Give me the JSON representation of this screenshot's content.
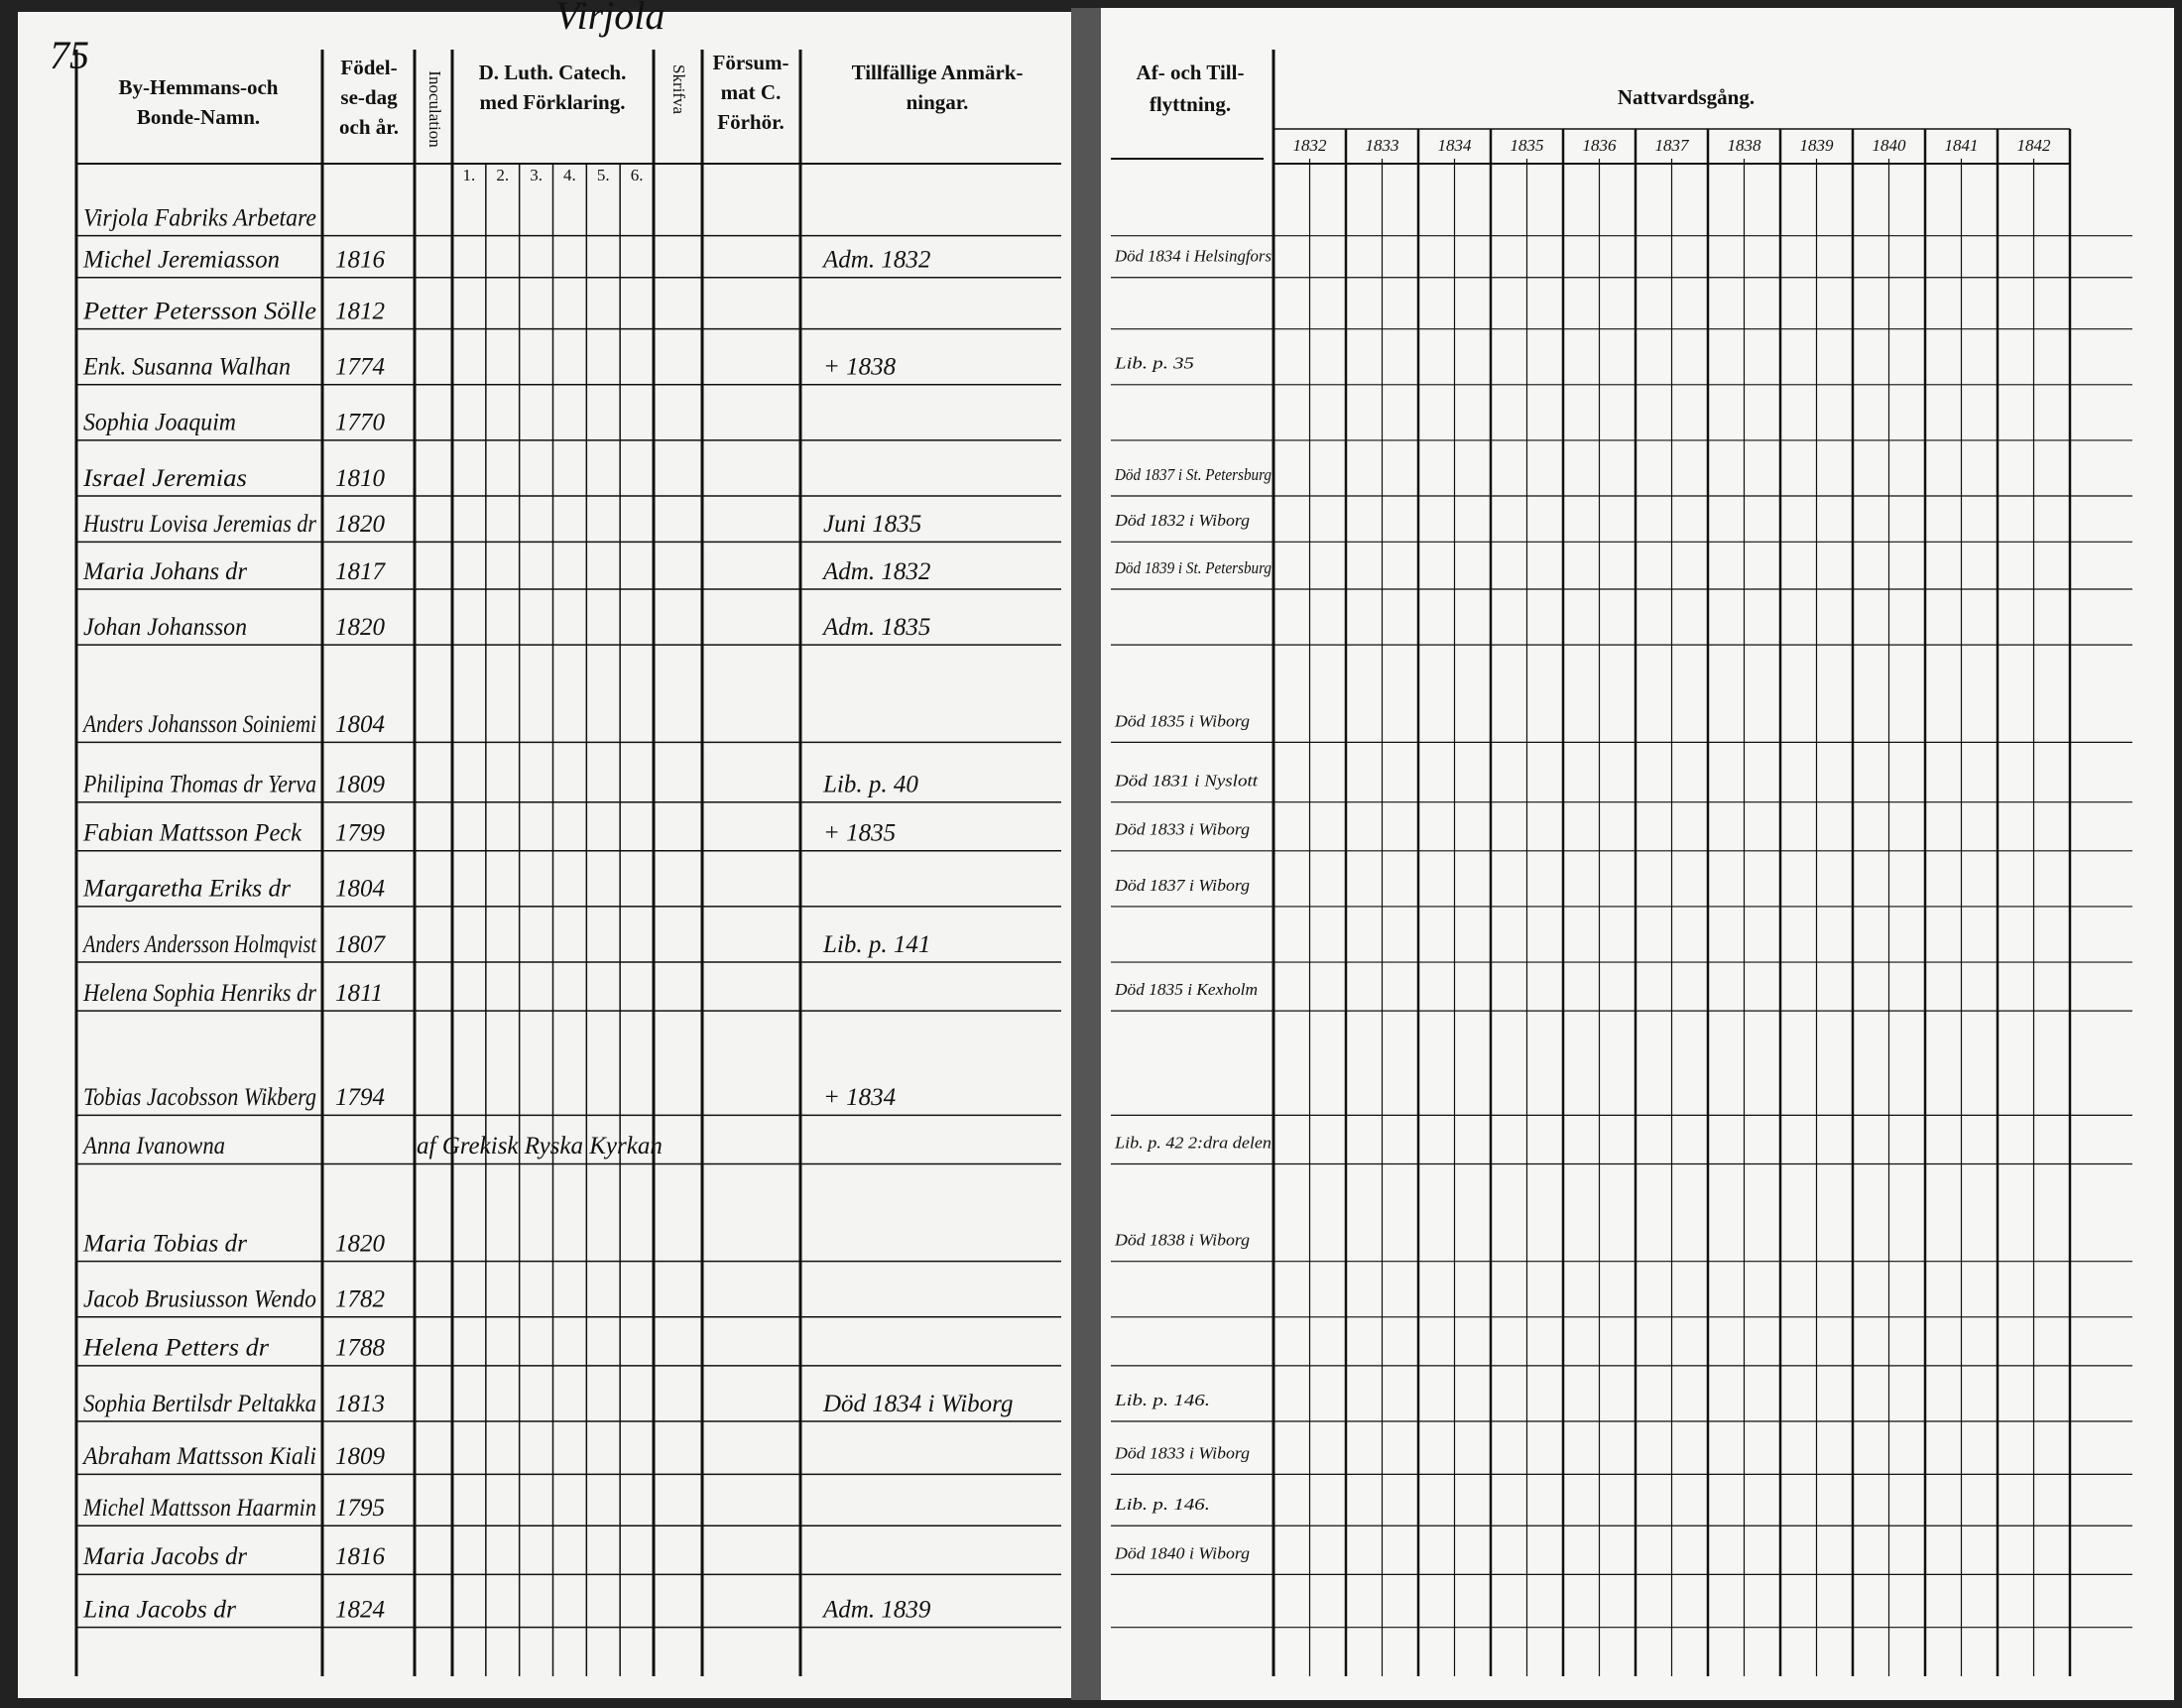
{
  "page_number": "75",
  "village": "Virjola",
  "left_page": {
    "headers": {
      "name": [
        "By-Hemmans-och",
        "Bonde-Namn."
      ],
      "birth": [
        "Födel-",
        "se-dag",
        "och år."
      ],
      "inoculation": "Inoculation",
      "catechism": [
        "D. Luth. Catech.",
        "med Förklaring."
      ],
      "writing": "Skrifva",
      "missed": [
        "Försum-",
        "mat C.",
        "Förhör."
      ],
      "remarks": [
        "Tillfällige Anmärk-",
        "ningar."
      ]
    },
    "catechism_parts": [
      "1.",
      "2.",
      "3.",
      "4.",
      "5.",
      "6."
    ],
    "rows": [
      {
        "name": "Virjola Fabriks Arbetare"
      },
      {
        "name": "Michel Jeremiasson",
        "birth": "1816",
        "remark": "Adm. 1832",
        "move": "Död 1834 i Helsingfors"
      },
      {
        "name": "Petter Petersson Sölle",
        "birth": "1812"
      },
      {
        "name": "Enk. Susanna Walhan",
        "birth": "1774",
        "remark": "+ 1838",
        "move": "Lib. p. 35"
      },
      {
        "name": "Sophia Joaquim",
        "birth": "1770"
      },
      {
        "name": "Israel Jeremias",
        "birth": "1810",
        "move": "Död 1837 i St. Petersburg"
      },
      {
        "name": "Hustru Lovisa Jeremias dr",
        "birth": "1820",
        "remark": "Juni 1835",
        "move": "Död 1832 i Wiborg"
      },
      {
        "name": "Maria Johans dr",
        "birth": "1817",
        "remark": "Adm. 1832",
        "move": "Död 1839 i St. Petersburg"
      },
      {
        "name": "Johan Johansson",
        "birth": "1820",
        "remark": "Adm. 1835"
      },
      {
        "name": "Anders Johansson Soiniemi",
        "birth": "1804",
        "move": "Död 1835 i Wiborg"
      },
      {
        "name": "Philipina Thomas dr Yerva",
        "birth": "1809",
        "remark": "Lib. p. 40",
        "move": "Död 1831 i Nyslott"
      },
      {
        "name": "Fabian Mattsson Peck",
        "birth": "1799",
        "remark": "+ 1835",
        "move": "Död 1833 i Wiborg"
      },
      {
        "name": "Margaretha Eriks dr",
        "birth": "1804",
        "move": "Död 1837 i Wiborg"
      },
      {
        "name": "Anders Andersson Holmqvist",
        "birth": "1807",
        "remark": "Lib. p. 141"
      },
      {
        "name": "Helena Sophia Henriks dr",
        "birth": "1811",
        "move": "Död 1835 i Kexholm"
      },
      {
        "name": "Tobias Jacobsson Wikberg",
        "birth": "1794",
        "remark": "+ 1834"
      },
      {
        "name": "Anna Ivanowna",
        "note": "af Grekisk Ryska Kyrkan",
        "move": "Lib. p. 42 2:dra delen"
      },
      {
        "name": "Maria Tobias dr",
        "birth": "1820",
        "move": "Död 1838 i Wiborg"
      },
      {
        "name": "Jacob Brusiusson Wendo",
        "birth": "1782"
      },
      {
        "name": "Helena Petters dr",
        "birth": "1788"
      },
      {
        "name": "Sophia Bertilsdr Peltakka",
        "birth": "1813",
        "remark": "Död 1834 i Wiborg",
        "move": "Lib. p. 146."
      },
      {
        "name": "Abraham Mattsson Kiali",
        "birth": "1809",
        "move": "Död 1833 i Wiborg"
      },
      {
        "name": "Michel Mattsson Haarmin",
        "birth": "1795",
        "move": "Lib. p. 146."
      },
      {
        "name": "Maria Jacobs dr",
        "birth": "1816",
        "move": "Död 1840 i Wiborg"
      },
      {
        "name": "Lina Jacobs dr",
        "birth": "1824",
        "remark": "Adm. 1839"
      }
    ]
  },
  "right_page": {
    "headers": {
      "moves": [
        "Af- och Till-",
        "flyttning."
      ],
      "communion": "Nattvardsgång."
    },
    "years": [
      "1832",
      "1833",
      "1834",
      "1835",
      "1836",
      "1837",
      "1838",
      "1839",
      "1840",
      "1841",
      "1842"
    ]
  }
}
